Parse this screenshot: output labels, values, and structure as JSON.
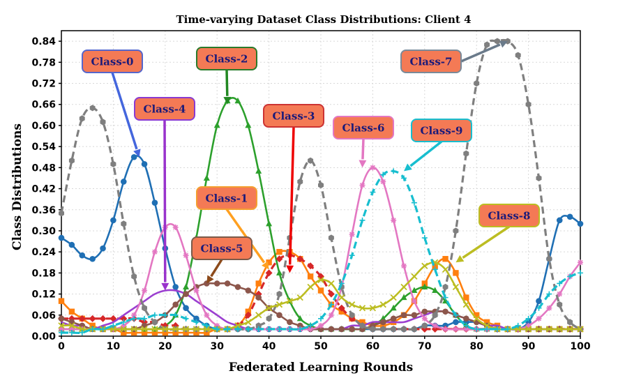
{
  "chart_data": {
    "type": "line",
    "title": "Time-varying Dataset Class Distributions: Client 4",
    "xlabel": "Federated Learning Rounds",
    "ylabel": "Class Distributions",
    "xlim": [
      0,
      100
    ],
    "ylim": [
      0,
      0.87
    ],
    "x_ticks": [
      "0",
      "10",
      "20",
      "30",
      "40",
      "50",
      "60",
      "70",
      "80",
      "90",
      "100"
    ],
    "y_ticks": [
      "0.00",
      "0.06",
      "0.12",
      "0.18",
      "0.24",
      "0.30",
      "0.36",
      "0.42",
      "0.48",
      "0.54",
      "0.60",
      "0.66",
      "0.72",
      "0.78",
      "0.84"
    ],
    "grid": true,
    "x": [
      0,
      2,
      4,
      6,
      8,
      10,
      12,
      14,
      16,
      18,
      20,
      22,
      24,
      26,
      28,
      30,
      32,
      34,
      36,
      38,
      40,
      42,
      44,
      46,
      48,
      50,
      52,
      54,
      56,
      58,
      60,
      62,
      64,
      66,
      68,
      70,
      72,
      74,
      76,
      78,
      80,
      82,
      84,
      86,
      88,
      90,
      92,
      94,
      96,
      98,
      100
    ],
    "series": [
      {
        "name": "Class-0",
        "color": "#1f6fb4",
        "marker": "circle",
        "dash": false,
        "values": [
          0.28,
          0.26,
          0.23,
          0.22,
          0.25,
          0.33,
          0.44,
          0.51,
          0.49,
          0.38,
          0.25,
          0.14,
          0.08,
          0.05,
          0.03,
          0.02,
          0.02,
          0.02,
          0.02,
          0.02,
          0.02,
          0.02,
          0.02,
          0.02,
          0.02,
          0.02,
          0.02,
          0.02,
          0.02,
          0.02,
          0.02,
          0.02,
          0.02,
          0.02,
          0.02,
          0.03,
          0.03,
          0.03,
          0.04,
          0.04,
          0.04,
          0.03,
          0.02,
          0.02,
          0.02,
          0.04,
          0.1,
          0.22,
          0.33,
          0.34,
          0.32
        ]
      },
      {
        "name": "Class-1",
        "color": "#ff7f0e",
        "marker": "square",
        "dash": false,
        "values": [
          0.1,
          0.07,
          0.05,
          0.03,
          0.02,
          0.02,
          0.01,
          0.01,
          0.01,
          0.01,
          0.01,
          0.01,
          0.01,
          0.01,
          0.01,
          0.02,
          0.02,
          0.03,
          0.07,
          0.15,
          0.21,
          0.24,
          0.24,
          0.22,
          0.17,
          0.13,
          0.09,
          0.07,
          0.05,
          0.04,
          0.03,
          0.03,
          0.04,
          0.06,
          0.1,
          0.15,
          0.2,
          0.22,
          0.18,
          0.11,
          0.06,
          0.04,
          0.03,
          0.02,
          0.02,
          0.02,
          0.02,
          0.02,
          0.02,
          0.02,
          0.02
        ]
      },
      {
        "name": "Class-2",
        "color": "#2ca02c",
        "marker": "triangle",
        "dash": false,
        "values": [
          0.02,
          0.02,
          0.02,
          0.02,
          0.02,
          0.02,
          0.02,
          0.02,
          0.02,
          0.02,
          0.03,
          0.06,
          0.14,
          0.28,
          0.45,
          0.6,
          0.67,
          0.67,
          0.6,
          0.47,
          0.32,
          0.18,
          0.1,
          0.05,
          0.03,
          0.02,
          0.02,
          0.02,
          0.02,
          0.02,
          0.03,
          0.05,
          0.08,
          0.11,
          0.13,
          0.14,
          0.13,
          0.1,
          0.06,
          0.03,
          0.02,
          0.02,
          0.02,
          0.02,
          0.02,
          0.02,
          0.02,
          0.02,
          0.02,
          0.02,
          0.02
        ]
      },
      {
        "name": "Class-3",
        "color": "#d62728",
        "marker": "diamond",
        "dash": true,
        "values": [
          0.05,
          0.05,
          0.05,
          0.05,
          0.05,
          0.05,
          0.05,
          0.05,
          0.04,
          0.04,
          0.03,
          0.03,
          0.02,
          0.02,
          0.02,
          0.02,
          0.02,
          0.03,
          0.06,
          0.12,
          0.18,
          0.22,
          0.23,
          0.22,
          0.2,
          0.17,
          0.12,
          0.08,
          0.05,
          0.03,
          0.02,
          0.02,
          0.02,
          0.02,
          0.02,
          0.02,
          0.02,
          0.02,
          0.02,
          0.02,
          0.02,
          0.02,
          0.02,
          0.02,
          0.02,
          0.02,
          0.02,
          0.02,
          0.02,
          0.02,
          0.02
        ]
      },
      {
        "name": "Class-4",
        "color": "#9b3fd0",
        "marker": "line",
        "dash": false,
        "values": [
          0.04,
          0.03,
          0.03,
          0.02,
          0.03,
          0.04,
          0.06,
          0.08,
          0.1,
          0.12,
          0.13,
          0.13,
          0.12,
          0.1,
          0.08,
          0.06,
          0.04,
          0.03,
          0.02,
          0.02,
          0.02,
          0.02,
          0.02,
          0.02,
          0.02,
          0.02,
          0.02,
          0.02,
          0.03,
          0.03,
          0.04,
          0.04,
          0.04,
          0.04,
          0.05,
          0.06,
          0.07,
          0.07,
          0.06,
          0.05,
          0.04,
          0.03,
          0.03,
          0.02,
          0.02,
          0.02,
          0.02,
          0.02,
          0.02,
          0.02,
          0.02
        ]
      },
      {
        "name": "Class-5",
        "color": "#8c564b",
        "marker": "circle",
        "dash": false,
        "values": [
          0.05,
          0.04,
          0.03,
          0.02,
          0.02,
          0.02,
          0.02,
          0.02,
          0.03,
          0.04,
          0.06,
          0.09,
          0.12,
          0.14,
          0.15,
          0.15,
          0.15,
          0.14,
          0.13,
          0.11,
          0.08,
          0.06,
          0.04,
          0.03,
          0.02,
          0.02,
          0.02,
          0.02,
          0.02,
          0.02,
          0.03,
          0.04,
          0.05,
          0.06,
          0.06,
          0.07,
          0.07,
          0.07,
          0.06,
          0.05,
          0.04,
          0.03,
          0.02,
          0.02,
          0.02,
          0.02,
          0.02,
          0.02,
          0.02,
          0.02,
          0.02
        ]
      },
      {
        "name": "Class-6",
        "color": "#e377c2",
        "marker": "star",
        "dash": false,
        "values": [
          0.02,
          0.02,
          0.02,
          0.02,
          0.02,
          0.02,
          0.03,
          0.06,
          0.13,
          0.24,
          0.31,
          0.31,
          0.23,
          0.13,
          0.06,
          0.03,
          0.02,
          0.02,
          0.02,
          0.02,
          0.02,
          0.02,
          0.02,
          0.02,
          0.02,
          0.03,
          0.06,
          0.14,
          0.29,
          0.43,
          0.48,
          0.44,
          0.33,
          0.2,
          0.1,
          0.05,
          0.03,
          0.02,
          0.02,
          0.02,
          0.02,
          0.02,
          0.02,
          0.02,
          0.02,
          0.03,
          0.05,
          0.08,
          0.12,
          0.17,
          0.21
        ]
      },
      {
        "name": "Class-7",
        "color": "#7f7f7f",
        "marker": "hexagon",
        "dash": true,
        "values": [
          0.35,
          0.5,
          0.62,
          0.65,
          0.61,
          0.49,
          0.32,
          0.17,
          0.08,
          0.04,
          0.02,
          0.02,
          0.02,
          0.02,
          0.02,
          0.02,
          0.02,
          0.02,
          0.02,
          0.03,
          0.05,
          0.12,
          0.28,
          0.44,
          0.5,
          0.43,
          0.28,
          0.14,
          0.06,
          0.03,
          0.02,
          0.02,
          0.02,
          0.02,
          0.02,
          0.03,
          0.06,
          0.14,
          0.3,
          0.52,
          0.72,
          0.83,
          0.84,
          0.84,
          0.8,
          0.66,
          0.45,
          0.22,
          0.09,
          0.04,
          0.02
        ]
      },
      {
        "name": "Class-8",
        "color": "#bcbd22",
        "marker": "x",
        "dash": false,
        "values": [
          0.03,
          0.03,
          0.02,
          0.02,
          0.02,
          0.02,
          0.02,
          0.02,
          0.02,
          0.02,
          0.02,
          0.02,
          0.02,
          0.02,
          0.02,
          0.02,
          0.02,
          0.03,
          0.04,
          0.06,
          0.08,
          0.09,
          0.1,
          0.11,
          0.14,
          0.16,
          0.15,
          0.11,
          0.09,
          0.08,
          0.08,
          0.09,
          0.11,
          0.14,
          0.17,
          0.2,
          0.21,
          0.19,
          0.14,
          0.09,
          0.05,
          0.03,
          0.02,
          0.02,
          0.02,
          0.02,
          0.02,
          0.02,
          0.02,
          0.02,
          0.02
        ]
      },
      {
        "name": "Class-9",
        "color": "#17becf",
        "marker": "plus",
        "dash": true,
        "values": [
          0.01,
          0.01,
          0.01,
          0.02,
          0.02,
          0.03,
          0.04,
          0.05,
          0.05,
          0.06,
          0.06,
          0.06,
          0.05,
          0.04,
          0.03,
          0.02,
          0.02,
          0.02,
          0.02,
          0.02,
          0.02,
          0.02,
          0.02,
          0.02,
          0.03,
          0.05,
          0.09,
          0.15,
          0.23,
          0.33,
          0.41,
          0.46,
          0.47,
          0.45,
          0.38,
          0.28,
          0.19,
          0.11,
          0.06,
          0.03,
          0.02,
          0.02,
          0.02,
          0.02,
          0.03,
          0.05,
          0.08,
          0.12,
          0.15,
          0.17,
          0.18
        ]
      }
    ],
    "callouts": [
      {
        "label": "Class-0",
        "series": 0,
        "fill": "#f47a55",
        "border": "#5566cc",
        "arrow": "#4466dd",
        "target": [
          15,
          0.51
        ]
      },
      {
        "label": "Class-1",
        "series": 1,
        "fill": "#f47a55",
        "border": "#f4a030",
        "arrow": "#ffa020",
        "target": [
          40,
          0.19
        ]
      },
      {
        "label": "Class-2",
        "series": 2,
        "fill": "#f47a55",
        "border": "#2a7a2a",
        "arrow": "#228822",
        "target": [
          32,
          0.66
        ]
      },
      {
        "label": "Class-3",
        "series": 3,
        "fill": "#f47a55",
        "border": "#cc3333",
        "arrow": "#ee0000",
        "target": [
          44,
          0.18
        ]
      },
      {
        "label": "Class-4",
        "series": 4,
        "fill": "#f47a55",
        "border": "#8a3ad0",
        "arrow": "#9933cc",
        "target": [
          20,
          0.13
        ]
      },
      {
        "label": "Class-5",
        "series": 5,
        "fill": "#f47a55",
        "border": "#7a5a4a",
        "arrow": "#8c4a1a",
        "target": [
          28,
          0.15
        ]
      },
      {
        "label": "Class-6",
        "series": 6,
        "fill": "#f47a55",
        "border": "#e377c2",
        "arrow": "#e377c2",
        "target": [
          58,
          0.48
        ]
      },
      {
        "label": "Class-7",
        "series": 7,
        "fill": "#f47a55",
        "border": "#7a8a99",
        "arrow": "#6a7a8a",
        "target": [
          86,
          0.84
        ]
      },
      {
        "label": "Class-8",
        "series": 8,
        "fill": "#f47a55",
        "border": "#bcbd22",
        "arrow": "#bcbd22",
        "target": [
          76,
          0.21
        ]
      },
      {
        "label": "Class-9",
        "series": 9,
        "fill": "#f47a55",
        "border": "#17becf",
        "arrow": "#17becf",
        "target": [
          66,
          0.47
        ]
      }
    ]
  }
}
